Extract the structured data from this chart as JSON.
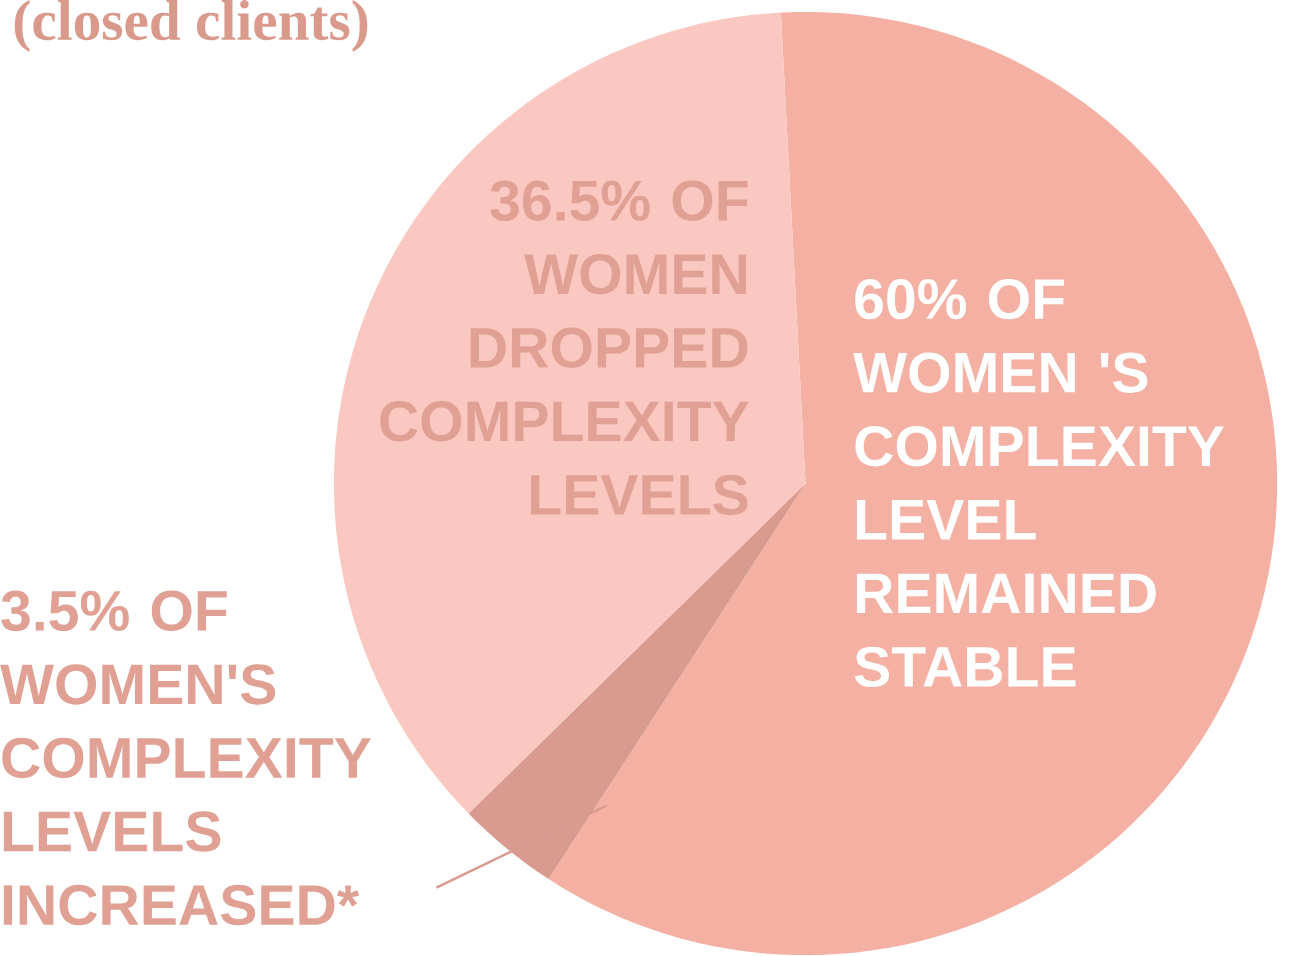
{
  "chart_data": {
    "type": "pie",
    "title": "(closed clients)",
    "categories": [
      "60% OF WOMEN 'S COMPLEXITY LEVEL REMAINED STABLE",
      "3.5% OF WOMEN'S COMPLEXITY LEVELS INCREASED*",
      "36.5% OF WOMEN DROPPED COMPLEXITY LEVELS"
    ],
    "values": [
      60,
      3.5,
      36.5
    ],
    "colors": [
      "#f4b0a2",
      "#d99a90",
      "#fac8c0"
    ]
  }
}
